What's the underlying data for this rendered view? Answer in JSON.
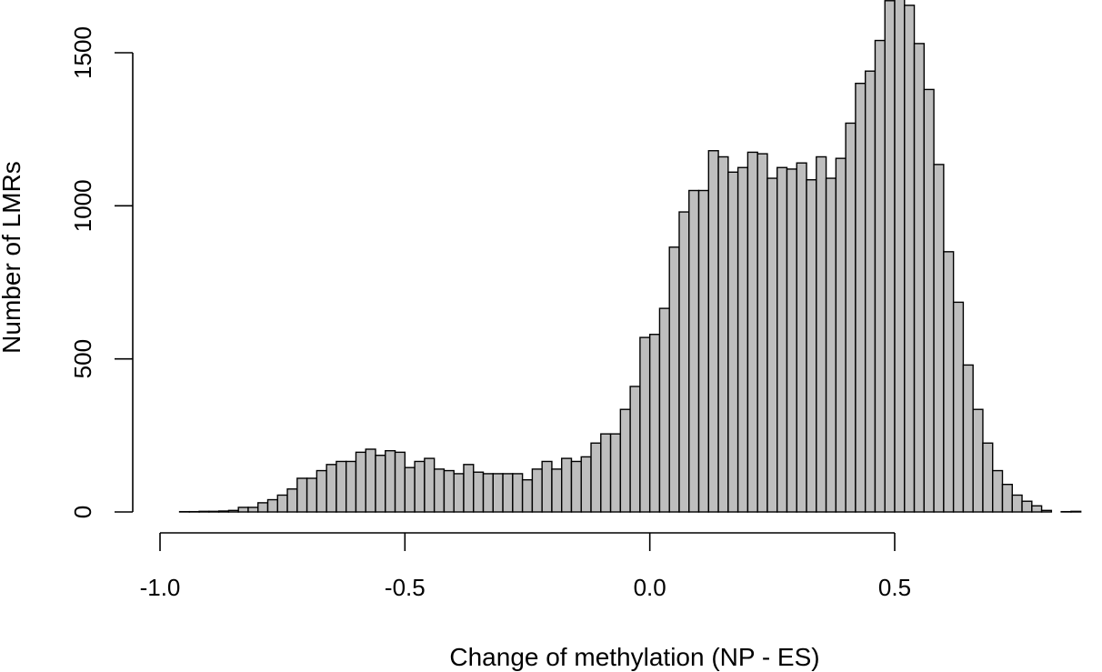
{
  "chart_data": {
    "type": "bar",
    "title": "",
    "xlabel": "Change of methylation (NP - ES)",
    "ylabel": "Number of LMRs",
    "xlim": [
      -1.0,
      0.9
    ],
    "ylim": [
      0,
      1650
    ],
    "grid": false,
    "bin_width": 0.02,
    "bin_start": -1.0,
    "bar_color": "#bebebe",
    "edge_color": "#000000",
    "x_ticks": [
      {
        "value": -1.0,
        "label": "-1.0"
      },
      {
        "value": -0.5,
        "label": "-0.5"
      },
      {
        "value": 0.0,
        "label": "0.0"
      },
      {
        "value": 0.5,
        "label": "0.5"
      }
    ],
    "y_ticks": [
      {
        "value": 0,
        "label": "0"
      },
      {
        "value": 500,
        "label": "500"
      },
      {
        "value": 1000,
        "label": "1000"
      },
      {
        "value": 1500,
        "label": "1500"
      }
    ],
    "values": [
      0,
      0,
      1,
      1,
      2,
      2,
      3,
      5,
      15,
      15,
      30,
      40,
      55,
      75,
      110,
      110,
      135,
      155,
      165,
      165,
      195,
      205,
      185,
      200,
      195,
      145,
      165,
      175,
      140,
      135,
      125,
      155,
      130,
      125,
      125,
      125,
      125,
      105,
      140,
      165,
      140,
      175,
      165,
      180,
      225,
      255,
      255,
      335,
      410,
      570,
      580,
      665,
      865,
      980,
      1050,
      1050,
      1180,
      1160,
      1110,
      1125,
      1175,
      1170,
      1090,
      1125,
      1120,
      1140,
      1085,
      1160,
      1090,
      1155,
      1270,
      1400,
      1440,
      1540,
      1670,
      1680,
      1655,
      1530,
      1380,
      1135,
      850,
      685,
      480,
      335,
      225,
      135,
      90,
      55,
      35,
      20,
      5,
      0,
      1,
      2,
      0
    ]
  }
}
